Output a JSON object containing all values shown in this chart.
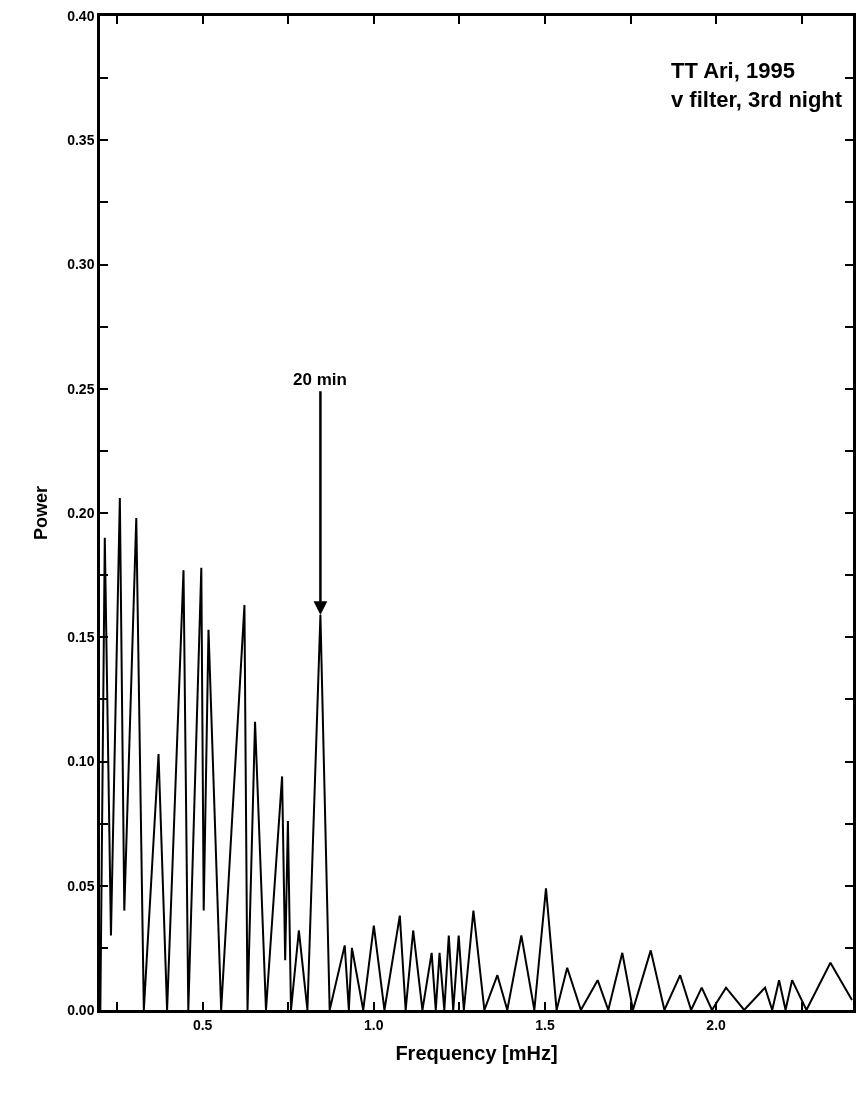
{
  "chart_data": {
    "type": "line",
    "xlabel": "Frequency [mHz]",
    "ylabel": "Power",
    "series": [
      {
        "color": "#000000",
        "x": [
          0.201,
          0.214,
          0.232,
          0.258,
          0.271,
          0.306,
          0.328,
          0.371,
          0.396,
          0.444,
          0.458,
          0.496,
          0.503,
          0.517,
          0.554,
          0.622,
          0.631,
          0.653,
          0.685,
          0.732,
          0.741,
          0.749,
          0.758,
          0.781,
          0.806,
          0.844,
          0.871,
          0.915,
          0.927,
          0.936,
          0.969,
          1.0,
          1.031,
          1.076,
          1.093,
          1.115,
          1.142,
          1.169,
          1.181,
          1.192,
          1.206,
          1.219,
          1.232,
          1.248,
          1.263,
          1.291,
          1.323,
          1.361,
          1.39,
          1.431,
          1.469,
          1.503,
          1.534,
          1.565,
          1.605,
          1.654,
          1.685,
          1.726,
          1.757,
          1.809,
          1.849,
          1.895,
          1.927,
          1.958,
          1.988,
          2.029,
          2.082,
          2.143,
          2.164,
          2.184,
          2.203,
          2.222,
          2.264,
          2.334,
          2.397
        ],
        "values": [
          0.0,
          0.19,
          0.03,
          0.206,
          0.04,
          0.198,
          0.0,
          0.103,
          0.0,
          0.177,
          0.0,
          0.178,
          0.04,
          0.153,
          0.0,
          0.163,
          0.0,
          0.116,
          0.0,
          0.094,
          0.02,
          0.076,
          0.0,
          0.032,
          0.0,
          0.159,
          0.0,
          0.026,
          0.0,
          0.025,
          0.0,
          0.034,
          0.0,
          0.038,
          0.0,
          0.032,
          0.0,
          0.023,
          0.0,
          0.023,
          0.0,
          0.03,
          0.0,
          0.03,
          0.0,
          0.04,
          0.0,
          0.014,
          0.0,
          0.03,
          0.0,
          0.049,
          0.0,
          0.017,
          0.0,
          0.012,
          0.0,
          0.023,
          0.0,
          0.024,
          0.0,
          0.014,
          0.0,
          0.009,
          0.0,
          0.009,
          0.0,
          0.009,
          0.0,
          0.012,
          0.0,
          0.012,
          0.0,
          0.019,
          0.004
        ]
      }
    ],
    "xlim": [
      0.2,
      2.4
    ],
    "xticks": [
      {
        "value": 0.25,
        "label": null
      },
      0.5,
      {
        "value": 0.75,
        "label": null
      },
      {
        "value": 1.0,
        "label": "1.0"
      },
      {
        "value": 1.25,
        "label": null
      },
      1.5,
      {
        "value": 1.75,
        "label": null
      },
      {
        "value": 2.0,
        "label": "2.0"
      },
      {
        "value": 2.25,
        "label": null
      }
    ],
    "ylim": [
      0,
      0.4
    ],
    "yticks": [
      {
        "value": 0,
        "label": "0.00"
      },
      {
        "value": 0.025,
        "label": null
      },
      {
        "value": 0.05,
        "label": "0.05"
      },
      {
        "value": 0.075,
        "label": null
      },
      {
        "value": 0.1,
        "label": "0.10"
      },
      {
        "value": 0.125,
        "label": null
      },
      {
        "value": 0.15,
        "label": "0.15"
      },
      {
        "value": 0.175,
        "label": null
      },
      {
        "value": 0.2,
        "label": "0.20"
      },
      {
        "value": 0.225,
        "label": null
      },
      {
        "value": 0.25,
        "label": "0.25"
      },
      {
        "value": 0.275,
        "label": null
      },
      {
        "value": 0.3,
        "label": "0.30"
      },
      {
        "value": 0.325,
        "label": null
      },
      {
        "value": 0.35,
        "label": "0.35"
      },
      {
        "value": 0.375,
        "label": null
      },
      {
        "value": 0.4,
        "label": "0.40"
      }
    ],
    "annotations": [
      {
        "text": "20 min",
        "x": 0.844,
        "y": 0.159
      },
      "TT Ari, 1995\nv filter, 3rd night"
    ],
    "marker": "none",
    "line_style": "solid"
  }
}
